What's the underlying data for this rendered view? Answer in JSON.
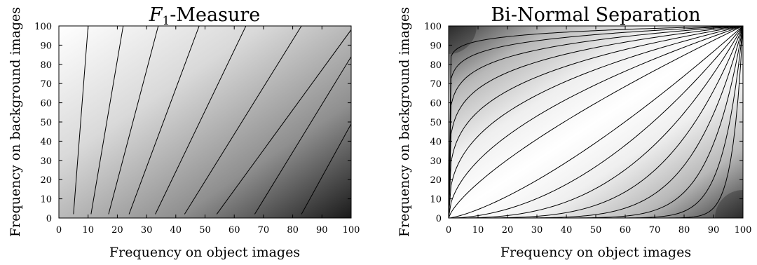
{
  "chart_data": [
    {
      "type": "heatmap",
      "name": "f1",
      "title_prefix": "F",
      "title_subscript": "1",
      "title_suffix": "-Measure",
      "xlabel": "Frequency on object images",
      "ylabel": "Frequency on background images",
      "xlim": [
        0,
        100
      ],
      "ylim": [
        0,
        100
      ],
      "xticks": [
        "0",
        "10",
        "20",
        "30",
        "40",
        "50",
        "60",
        "70",
        "80",
        "90",
        "100"
      ],
      "yticks": [
        "0",
        "10",
        "20",
        "30",
        "40",
        "50",
        "60",
        "70",
        "80",
        "90",
        "100"
      ],
      "colormap": "grayscale, light = low value, dark = high value",
      "contour_lines": [
        {
          "x_at_y0": 5,
          "x_at_y100": 10
        },
        {
          "x_at_y0": 11,
          "x_at_y100": 22
        },
        {
          "x_at_y0": 17,
          "x_at_y100": 34
        },
        {
          "x_at_y0": 24,
          "x_at_y100": 48
        },
        {
          "x_at_y0": 33,
          "x_at_y100": 64
        },
        {
          "x_at_y0": 43,
          "x_at_y100": 83
        },
        {
          "x_at_y0": 54,
          "x_at_y100": 100,
          "y_at_x100": 98
        },
        {
          "x_at_y0": 67,
          "x_at_y100": 100,
          "y_at_x100": 84
        },
        {
          "x_at_y0": 83,
          "x_at_y100": 100,
          "y_at_x100": 49
        },
        {
          "x_at_y0": 100,
          "x_at_y100": 100,
          "y_at_x100": 20
        }
      ]
    },
    {
      "type": "heatmap",
      "name": "bns",
      "title": "Bi-Normal Separation",
      "xlabel": "Frequency on object images",
      "ylabel": "Frequency on background images",
      "xlim": [
        0,
        100
      ],
      "ylim": [
        0,
        100
      ],
      "xticks": [
        "0",
        "10",
        "20",
        "30",
        "40",
        "50",
        "60",
        "70",
        "80",
        "90",
        "100"
      ],
      "yticks": [
        "0",
        "10",
        "20",
        "30",
        "40",
        "50",
        "60",
        "70",
        "80",
        "90",
        "100"
      ],
      "colormap": "grayscale, white along diagonal, dark near upper-left and lower-right corners",
      "contour_levels": [
        0.15,
        0.3,
        0.45,
        0.6,
        0.75,
        0.85,
        0.93,
        0.98
      ]
    }
  ]
}
